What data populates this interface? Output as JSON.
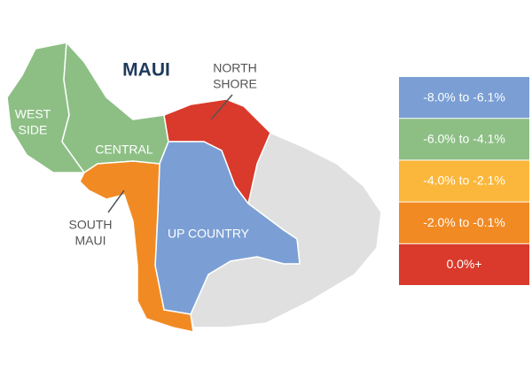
{
  "title": "MAUI",
  "regions": [
    {
      "lines": [
        "WEST",
        "SIDE"
      ],
      "color": "#8dbf85"
    },
    {
      "lines": [
        "CENTRAL"
      ],
      "color": "#8dbf85"
    },
    {
      "lines": [
        "NORTH",
        "SHORE"
      ],
      "color": "#d93a2b"
    },
    {
      "lines": [
        "UP COUNTRY"
      ],
      "color": "#7b9fd4"
    },
    {
      "lines": [
        "SOUTH",
        "MAUI"
      ],
      "color": "#f28a24"
    }
  ],
  "legend": [
    {
      "label": "-8.0% to -6.1%",
      "color": "#7b9fd4"
    },
    {
      "label": "-6.0% to -4.1%",
      "color": "#8dbf85"
    },
    {
      "label": "-4.0% to -2.1%",
      "color": "#fbb73b"
    },
    {
      "label": "-2.0% to -0.1%",
      "color": "#f28a24"
    },
    {
      "label": "0.0%+",
      "color": "#d93a2b"
    }
  ]
}
